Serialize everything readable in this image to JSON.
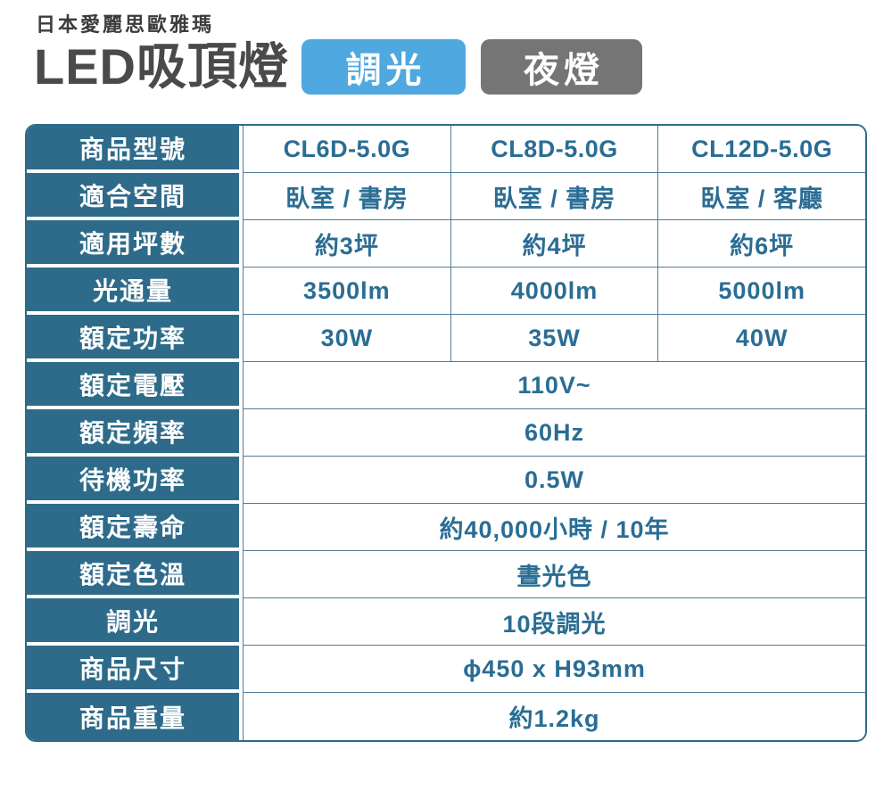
{
  "header": {
    "brand": "日本愛麗思歐雅瑪",
    "title": "LED吸頂燈",
    "badges": [
      {
        "id": "dimming",
        "label": "調光"
      },
      {
        "id": "nightlight",
        "label": "夜燈"
      }
    ]
  },
  "spec_table": {
    "rows": [
      {
        "label": "商品型號",
        "values": [
          "CL6D-5.0G",
          "CL8D-5.0G",
          "CL12D-5.0G"
        ]
      },
      {
        "label": "適合空間",
        "values": [
          "臥室 / 書房",
          "臥室 / 書房",
          "臥室 / 客廳"
        ]
      },
      {
        "label": "適用坪數",
        "values": [
          "約3坪",
          "約4坪",
          "約6坪"
        ]
      },
      {
        "label": "光通量",
        "values": [
          "3500lm",
          "4000lm",
          "5000lm"
        ]
      },
      {
        "label": "額定功率",
        "values": [
          "30W",
          "35W",
          "40W"
        ]
      },
      {
        "label": "額定電壓",
        "value": "110V~"
      },
      {
        "label": "額定頻率",
        "value": "60Hz"
      },
      {
        "label": "待機功率",
        "value": "0.5W"
      },
      {
        "label": "額定壽命",
        "value": "約40,000小時 / 10年"
      },
      {
        "label": "額定色溫",
        "value": "晝光色"
      },
      {
        "label": "調光",
        "value": "10段調光"
      },
      {
        "label": "商品尺寸",
        "value": "ϕ450 x H93mm"
      },
      {
        "label": "商品重量",
        "value": "約1.2kg"
      }
    ]
  },
  "colors": {
    "label_bg": "#2e6b8a",
    "table_border": "#2e6b8a",
    "cell_text": "#2a6d94",
    "grid_line": "#4f7c9a",
    "title_text": "#4a4a4a",
    "brand_text": "#3c3c3c",
    "badge_dimming_bg": "#4fa8df",
    "badge_night_bg": "#757575"
  }
}
